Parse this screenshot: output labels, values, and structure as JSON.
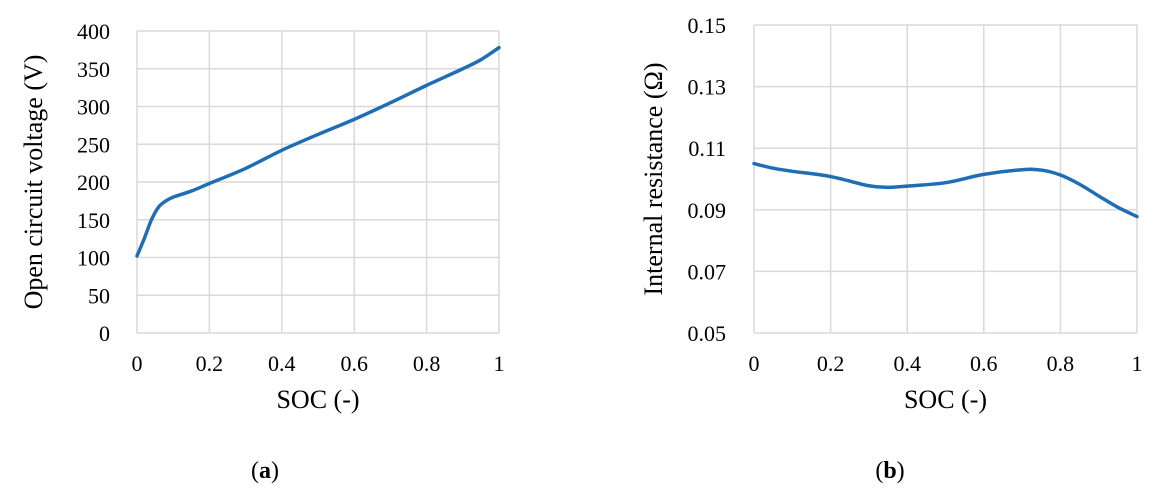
{
  "chart_data": [
    {
      "type": "line",
      "panel": "a",
      "xlabel": "SOC (-)",
      "ylabel": "Open circuit voltage (V)",
      "xlim": [
        0,
        1
      ],
      "ylim": [
        0,
        400
      ],
      "xticks": [
        "0",
        "0.2",
        "0.4",
        "0.6",
        "0.8",
        "1"
      ],
      "yticks": [
        "0",
        "50",
        "100",
        "150",
        "200",
        "250",
        "300",
        "350",
        "400"
      ],
      "grid": true,
      "series": [
        {
          "color": "#1f6db5",
          "x": [
            0,
            0.02,
            0.04,
            0.06,
            0.08,
            0.1,
            0.15,
            0.2,
            0.3,
            0.4,
            0.5,
            0.6,
            0.7,
            0.8,
            0.9,
            0.95,
            1.0
          ],
          "y": [
            102,
            125,
            150,
            167,
            175,
            180,
            188,
            198,
            218,
            242,
            263,
            283,
            305,
            328,
            350,
            362,
            378
          ]
        }
      ]
    },
    {
      "type": "line",
      "panel": "b",
      "xlabel": "SOC (-)",
      "ylabel": "Internal resistance (Ω)",
      "xlim": [
        0,
        1
      ],
      "ylim": [
        0.05,
        0.15
      ],
      "xticks": [
        "0",
        "0.2",
        "0.4",
        "0.6",
        "0.8",
        "1"
      ],
      "yticks": [
        "0.05",
        "0.07",
        "0.09",
        "0.11",
        "0.13",
        "0.15"
      ],
      "grid": true,
      "series": [
        {
          "color": "#1f6db5",
          "x": [
            0,
            0.05,
            0.1,
            0.2,
            0.3,
            0.35,
            0.4,
            0.5,
            0.6,
            0.7,
            0.75,
            0.8,
            0.85,
            0.9,
            0.95,
            1.0
          ],
          "y": [
            0.105,
            0.1035,
            0.1025,
            0.1008,
            0.0978,
            0.0973,
            0.0977,
            0.0988,
            0.1015,
            0.103,
            0.1029,
            0.1013,
            0.0983,
            0.0945,
            0.0908,
            0.0878
          ]
        }
      ]
    }
  ],
  "labels": {
    "a_open": "(",
    "a_letter": "a",
    "a_close": ")",
    "b_open": "(",
    "b_letter": "b",
    "b_close": ")"
  }
}
